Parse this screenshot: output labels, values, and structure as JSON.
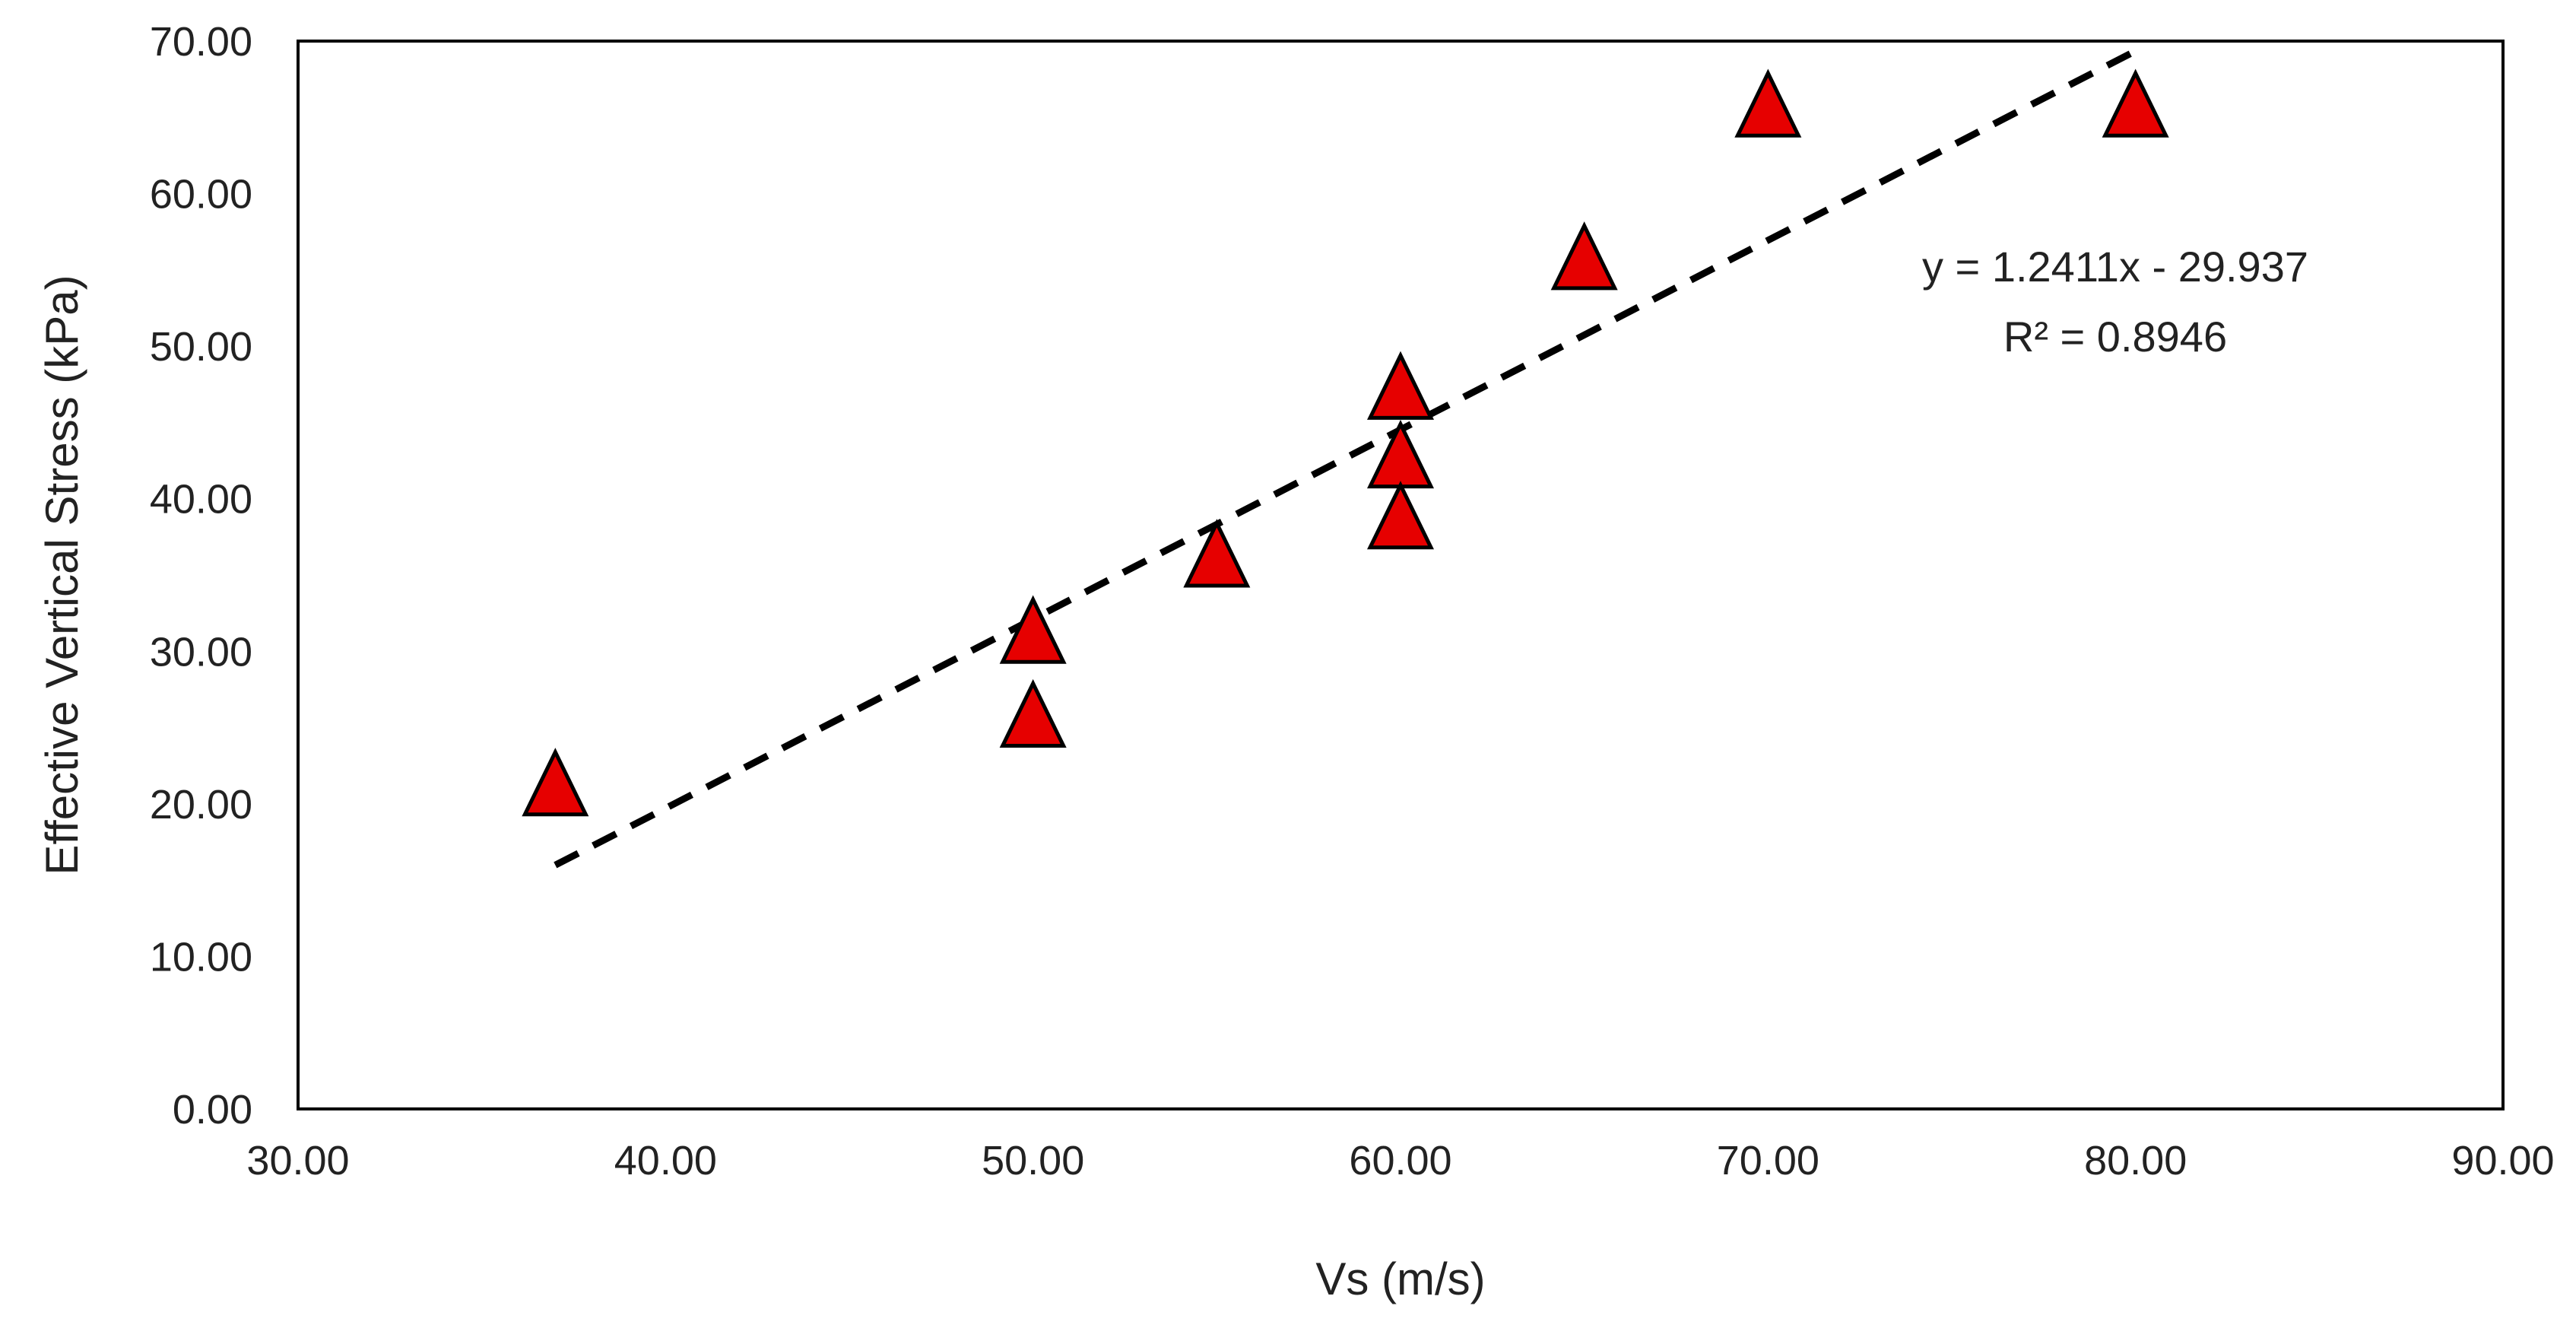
{
  "chart_data": {
    "type": "scatter",
    "title": "",
    "xlabel": "Vs (m/s)",
    "ylabel": "Effective Vertical  Stress (kPa)",
    "xlim": [
      30,
      90
    ],
    "ylim": [
      0,
      70
    ],
    "x_ticks": [
      "30.00",
      "40.00",
      "50.00",
      "60.00",
      "70.00",
      "80.00",
      "90.00"
    ],
    "y_ticks": [
      "0.00",
      "10.00",
      "20.00",
      "30.00",
      "40.00",
      "50.00",
      "60.00",
      "70.00"
    ],
    "grid": false,
    "legend": "none",
    "series": [
      {
        "name": "Data",
        "marker": "triangle",
        "color": "#e60000",
        "points": [
          {
            "x": 37,
            "y": 21
          },
          {
            "x": 50,
            "y": 31
          },
          {
            "x": 50,
            "y": 25.5
          },
          {
            "x": 55,
            "y": 36
          },
          {
            "x": 60,
            "y": 47
          },
          {
            "x": 60,
            "y": 42.5
          },
          {
            "x": 60,
            "y": 38.5
          },
          {
            "x": 65,
            "y": 55.5
          },
          {
            "x": 70,
            "y": 65.5
          },
          {
            "x": 80,
            "y": 65.5
          }
        ]
      }
    ],
    "trendline": {
      "type": "linear",
      "style": "dashed",
      "slope": 1.2411,
      "intercept": -29.937,
      "x_range": [
        37,
        80
      ],
      "equation": "y = 1.2411x - 29.937",
      "r_squared": "R² = 0.8946"
    }
  }
}
